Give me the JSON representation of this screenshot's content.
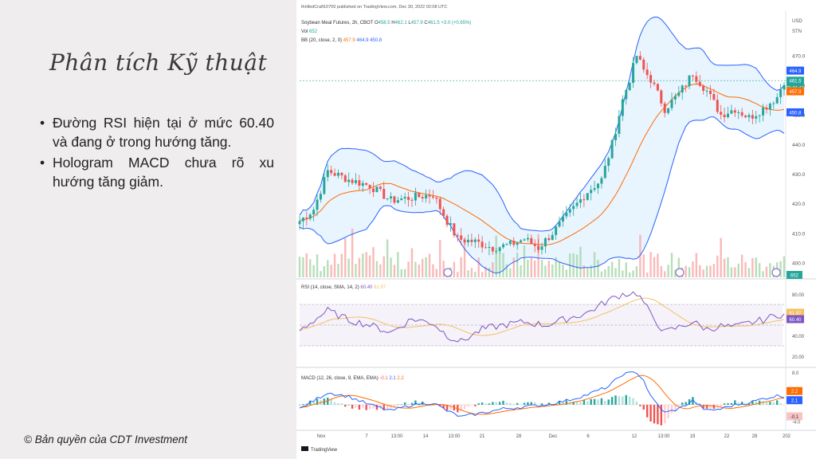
{
  "slide": {
    "title": "Phân tích Kỹ thuật",
    "bullets": [
      "Đường RSI hiện tại ở mức 60.40 và đang ở trong hướng tăng.",
      "Hologram MACD chưa rõ xu hướng tăng giảm."
    ],
    "bullet_symbol": "•",
    "copyright": "© Bản quyền của CDT Investment"
  },
  "chart": {
    "publish_note": "thrilledCraft10700 published on TradingView.com, Dec 30, 2022 02:08 UTC",
    "symbol_line": "Soybean Meal Futures, 2h, CBOT",
    "ohlc": [
      {
        "k": "O",
        "v": "458.5"
      },
      {
        "k": "H",
        "v": "462.1"
      },
      {
        "k": "L",
        "v": "457.9"
      },
      {
        "k": "C",
        "v": "461.5"
      }
    ],
    "change": "+3.0 (+0.65%)",
    "vol_label": "Vol",
    "vol_value": "652",
    "bb_label": "BB (20, close, 2, 0)",
    "bb_values": [
      "457.9",
      "464.9",
      "450.8"
    ],
    "currency": "USD",
    "unit": "STN",
    "price_ticks": [
      "470.0",
      "460.0",
      "450.0",
      "440.0",
      "430.0",
      "420.0",
      "410.0",
      "400.0"
    ],
    "price_badges": [
      {
        "text": "464.9",
        "color": "#2962ff"
      },
      {
        "text": "461.5",
        "color": "#26a69a"
      },
      {
        "text": "01:01:16",
        "color": "#26a69a"
      },
      {
        "text": "457.9",
        "color": "#ff6d00"
      },
      {
        "text": "450.8",
        "color": "#2962ff"
      }
    ],
    "volume_badge": "652",
    "rsi_label": "RSI (14, close, SMA, 14, 2)",
    "rsi_values": [
      "60.40",
      "61.97"
    ],
    "rsi_ticks": [
      "80.00",
      "60.00",
      "40.00",
      "20.00"
    ],
    "rsi_badges": [
      "61.97",
      "60.40"
    ],
    "macd_label": "MACD (12, 26, close, 9, EMA, EMA)",
    "macd_values": [
      "-0.1",
      "2.1",
      "2.2"
    ],
    "macd_ticks": [
      "8.0",
      "4.0",
      "-4.0"
    ],
    "macd_badges": [
      {
        "text": "2.2",
        "color": "#ff6d00"
      },
      {
        "text": "2.1",
        "color": "#2962ff"
      },
      {
        "text": "-0.1",
        "color": "#f7c3c5"
      }
    ],
    "x_ticks": [
      "Nov",
      "7",
      "13:00",
      "14",
      "13:00",
      "21",
      "28",
      "Dec",
      "6",
      "12",
      "13:00",
      "19",
      "22",
      "28",
      "202"
    ],
    "footer": "TradingView",
    "colors": {
      "up": "#26a69a",
      "down": "#ef5350",
      "bb": "#2962ff",
      "basis": "#ff6d00",
      "rsi": "#7e57c2",
      "rsi_ma": "#f5c063"
    }
  },
  "chart_data": {
    "type": "candlestick",
    "title": "Soybean Meal Futures, 2h, CBOT",
    "y_range": [
      395,
      478
    ],
    "close_path": [
      [
        0,
        414
      ],
      [
        4,
        418
      ],
      [
        8,
        431
      ],
      [
        14,
        428
      ],
      [
        20,
        426
      ],
      [
        26,
        421
      ],
      [
        32,
        422
      ],
      [
        38,
        423
      ],
      [
        42,
        414
      ],
      [
        45,
        408
      ],
      [
        50,
        407
      ],
      [
        55,
        405
      ],
      [
        60,
        406
      ],
      [
        64,
        408
      ],
      [
        68,
        405
      ],
      [
        72,
        410
      ],
      [
        77,
        417
      ],
      [
        82,
        424
      ],
      [
        86,
        428
      ],
      [
        89,
        440
      ],
      [
        92,
        455
      ],
      [
        94,
        462
      ],
      [
        96,
        470
      ],
      [
        98,
        465
      ],
      [
        100,
        462
      ],
      [
        104,
        452
      ],
      [
        108,
        457
      ],
      [
        112,
        464
      ],
      [
        116,
        458
      ],
      [
        120,
        450
      ],
      [
        124,
        452
      ],
      [
        128,
        449
      ],
      [
        132,
        452
      ],
      [
        136,
        456
      ],
      [
        138,
        461.5
      ]
    ],
    "rsi_path": [
      [
        0,
        45
      ],
      [
        8,
        64
      ],
      [
        14,
        55
      ],
      [
        20,
        50
      ],
      [
        26,
        43
      ],
      [
        32,
        56
      ],
      [
        38,
        52
      ],
      [
        42,
        40
      ],
      [
        46,
        34
      ],
      [
        52,
        46
      ],
      [
        58,
        50
      ],
      [
        64,
        53
      ],
      [
        70,
        50
      ],
      [
        76,
        56
      ],
      [
        82,
        62
      ],
      [
        88,
        74
      ],
      [
        92,
        80
      ],
      [
        96,
        81
      ],
      [
        98,
        72
      ],
      [
        100,
        60
      ],
      [
        104,
        43
      ],
      [
        108,
        48
      ],
      [
        112,
        53
      ],
      [
        116,
        46
      ],
      [
        120,
        49
      ],
      [
        124,
        48
      ],
      [
        128,
        52
      ],
      [
        132,
        55
      ],
      [
        136,
        60
      ],
      [
        138,
        60.4
      ]
    ],
    "macd_path": [
      [
        0,
        -1
      ],
      [
        8,
        3
      ],
      [
        14,
        2
      ],
      [
        20,
        0
      ],
      [
        26,
        -1.5
      ],
      [
        32,
        0
      ],
      [
        38,
        0.5
      ],
      [
        42,
        -1.5
      ],
      [
        46,
        -3
      ],
      [
        52,
        -2
      ],
      [
        58,
        -1
      ],
      [
        64,
        -0.5
      ],
      [
        70,
        0
      ],
      [
        76,
        1
      ],
      [
        82,
        2.5
      ],
      [
        88,
        4.5
      ],
      [
        92,
        7.5
      ],
      [
        96,
        8
      ],
      [
        98,
        6
      ],
      [
        100,
        2
      ],
      [
        104,
        -2
      ],
      [
        108,
        -1
      ],
      [
        112,
        1
      ],
      [
        116,
        -1.5
      ],
      [
        120,
        -1
      ],
      [
        124,
        0
      ],
      [
        128,
        0.5
      ],
      [
        132,
        1.5
      ],
      [
        136,
        2.2
      ],
      [
        138,
        2.1
      ]
    ]
  }
}
